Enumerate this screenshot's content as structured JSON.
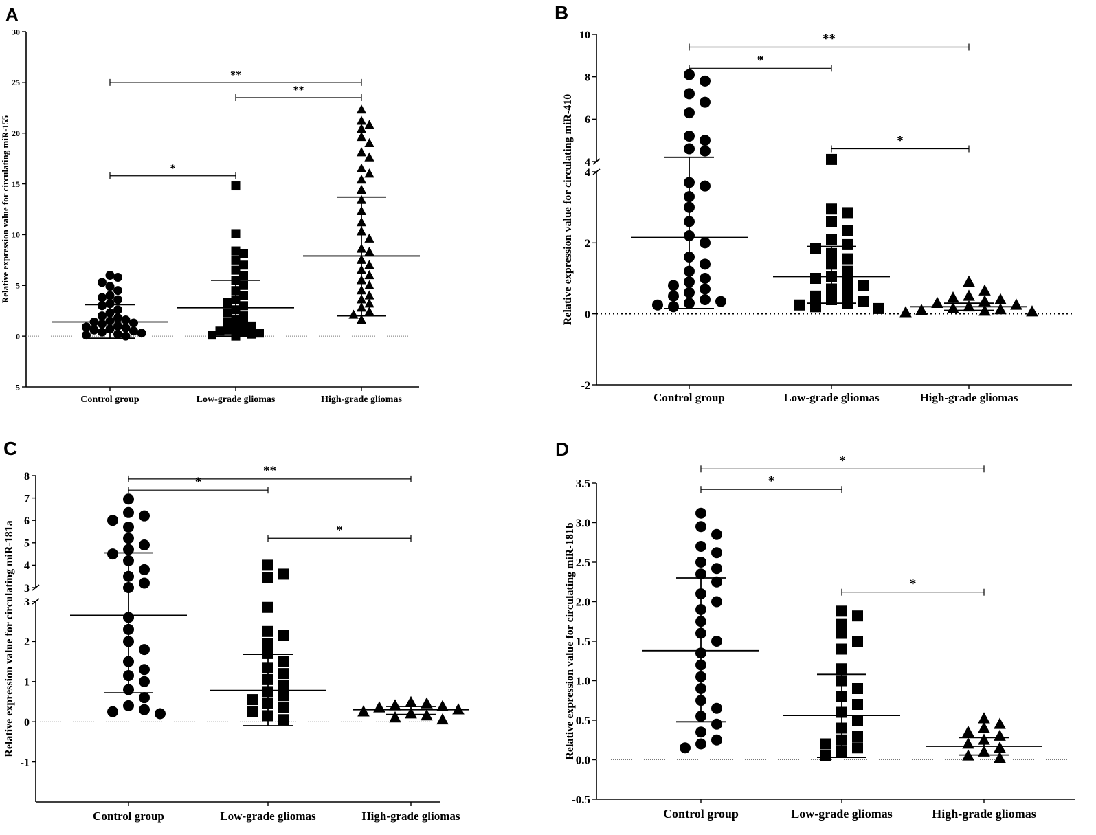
{
  "figure": {
    "description_free": true
  },
  "chart_data": [
    {
      "panel": "A",
      "type": "scatter",
      "subtype": "dot-plot-with-mean-sd",
      "title": "",
      "ylabel": "Relative expression value for circulating miR-155",
      "categories": [
        "Control group",
        "Low-grade gliomas",
        "High-grade gliomas"
      ],
      "ylim": [
        -5,
        30
      ],
      "yticks": [
        "-5",
        "0",
        "5",
        "10",
        "15",
        "20",
        "25",
        "30"
      ],
      "marker_shapes": [
        "circle",
        "square",
        "triangle"
      ],
      "groups": [
        {
          "name": "Control group",
          "marker": "circle",
          "mean": 1.4,
          "sd_upper": 3.1,
          "sd_lower": -0.2,
          "values": [
            6.0,
            5.8,
            5.3,
            4.9,
            4.5,
            4.0,
            3.8,
            3.6,
            3.2,
            3.0,
            2.6,
            2.3,
            2.0,
            1.8,
            1.6,
            1.5,
            1.4,
            1.3,
            1.2,
            1.0,
            0.9,
            0.8,
            0.7,
            0.6,
            0.5,
            0.4,
            0.3,
            0.2,
            0.1,
            0.0
          ]
        },
        {
          "name": "Low-grade gliomas",
          "marker": "square",
          "mean": 2.8,
          "sd_upper": 5.5,
          "sd_lower": 0.0,
          "values": [
            14.8,
            10.1,
            8.4,
            8.1,
            7.5,
            7.0,
            6.5,
            6.0,
            5.5,
            5.0,
            4.5,
            4.0,
            3.6,
            3.3,
            3.0,
            2.6,
            2.3,
            2.0,
            1.6,
            1.4,
            1.2,
            1.0,
            0.8,
            0.6,
            0.5,
            0.4,
            0.3,
            0.2,
            0.1,
            0.0
          ]
        },
        {
          "name": "High-grade gliomas",
          "marker": "triangle",
          "mean": 7.9,
          "sd_upper": 13.7,
          "sd_lower": 2.0,
          "values": [
            22.3,
            21.2,
            20.8,
            20.4,
            19.6,
            19.0,
            18.1,
            17.6,
            16.5,
            16.0,
            15.4,
            14.4,
            13.4,
            12.3,
            11.2,
            10.3,
            9.6,
            8.6,
            8.3,
            7.5,
            7.0,
            6.5,
            6.0,
            5.5,
            5.0,
            4.5,
            4.0,
            3.6,
            3.2,
            2.8,
            2.4,
            2.1,
            1.6
          ]
        }
      ],
      "significance": [
        {
          "from": "Control group",
          "to": "High-grade gliomas",
          "y": 25.0,
          "label": "**"
        },
        {
          "from": "Low-grade gliomas",
          "to": "High-grade gliomas",
          "y": 23.5,
          "label": "**"
        },
        {
          "from": "Control group",
          "to": "Low-grade gliomas",
          "y": 15.8,
          "label": "*"
        }
      ],
      "broken_axis": false
    },
    {
      "panel": "B",
      "type": "scatter",
      "subtype": "dot-plot-with-mean-sd",
      "title": "",
      "ylabel": "Relative expression value for circulating miR-410",
      "categories": [
        "Control group",
        "Low-grade gliomas",
        "High-grade gliomas"
      ],
      "ylim": [
        -2,
        10
      ],
      "yticks": [
        "-2",
        "0",
        "2",
        "4",
        "4",
        "6",
        "8",
        "10"
      ],
      "broken_axis": true,
      "break_at": 4,
      "marker_shapes": [
        "circle",
        "square",
        "triangle"
      ],
      "groups": [
        {
          "name": "Control group",
          "marker": "circle",
          "mean": 2.15,
          "sd_upper": 4.2,
          "sd_lower": 0.15,
          "values": [
            8.1,
            7.8,
            7.2,
            6.8,
            6.3,
            5.2,
            5.0,
            4.6,
            4.5,
            3.7,
            3.6,
            3.3,
            3.0,
            2.6,
            2.2,
            2.0,
            1.6,
            1.4,
            1.2,
            1.0,
            0.9,
            0.8,
            0.7,
            0.6,
            0.5,
            0.4,
            0.35,
            0.3,
            0.25,
            0.2
          ]
        },
        {
          "name": "Low-grade gliomas",
          "marker": "square",
          "mean": 1.05,
          "sd_upper": 1.9,
          "sd_lower": 0.3,
          "values": [
            4.1,
            2.95,
            2.85,
            2.6,
            2.35,
            2.1,
            1.95,
            1.85,
            1.7,
            1.55,
            1.4,
            1.2,
            1.05,
            1.0,
            0.9,
            0.8,
            0.7,
            0.6,
            0.5,
            0.4,
            0.35,
            0.3,
            0.25,
            0.2,
            0.15
          ]
        },
        {
          "name": "High-grade gliomas",
          "marker": "triangle",
          "mean": 0.2,
          "sd_upper": 0.3,
          "sd_lower": 0.1,
          "values": [
            0.9,
            0.65,
            0.5,
            0.45,
            0.4,
            0.35,
            0.3,
            0.25,
            0.2,
            0.15,
            0.12,
            0.1,
            0.08,
            0.06,
            0.04
          ]
        }
      ],
      "significance": [
        {
          "from": "Control group",
          "to": "High-grade gliomas",
          "y": 9.4,
          "label": "**"
        },
        {
          "from": "Control group",
          "to": "Low-grade gliomas",
          "y": 8.4,
          "label": "*"
        },
        {
          "from": "Low-grade gliomas",
          "to": "High-grade gliomas",
          "y": 4.6,
          "label": "*"
        }
      ]
    },
    {
      "panel": "C",
      "type": "scatter",
      "subtype": "dot-plot-with-mean-sd",
      "title": "",
      "ylabel": "Relative expression value for circulating miR-181a",
      "categories": [
        "Control group",
        "Low-grade gliomas",
        "High-grade gliomas"
      ],
      "ylim": [
        -2,
        8
      ],
      "yticks": [
        "-1",
        "0",
        "1",
        "2",
        "3",
        "3",
        "4",
        "5",
        "6",
        "7",
        "8"
      ],
      "broken_axis": true,
      "break_at": 3,
      "marker_shapes": [
        "circle",
        "square",
        "triangle"
      ],
      "groups": [
        {
          "name": "Control group",
          "marker": "circle",
          "mean": 2.65,
          "sd_upper": 4.55,
          "sd_lower": 0.72,
          "values": [
            6.95,
            6.35,
            6.2,
            6.0,
            5.7,
            5.2,
            4.9,
            4.7,
            4.5,
            4.2,
            3.8,
            3.5,
            3.2,
            3.0,
            2.6,
            2.3,
            2.0,
            1.8,
            1.5,
            1.3,
            1.15,
            1.0,
            0.8,
            0.6,
            0.4,
            0.3,
            0.25,
            0.2
          ]
        },
        {
          "name": "Low-grade gliomas",
          "marker": "square",
          "mean": 0.78,
          "sd_upper": 1.68,
          "sd_lower": -0.1,
          "values": [
            4.0,
            3.6,
            3.45,
            2.85,
            2.25,
            2.15,
            1.95,
            1.7,
            1.5,
            1.35,
            1.2,
            1.05,
            0.9,
            0.75,
            0.65,
            0.55,
            0.45,
            0.35,
            0.25,
            0.15,
            0.05
          ]
        },
        {
          "name": "High-grade gliomas",
          "marker": "triangle",
          "mean": 0.3,
          "sd_upper": 0.38,
          "sd_lower": 0.18,
          "values": [
            0.48,
            0.45,
            0.4,
            0.38,
            0.35,
            0.3,
            0.25,
            0.2,
            0.15,
            0.1,
            0.05
          ]
        }
      ],
      "significance": [
        {
          "from": "Control group",
          "to": "High-grade gliomas",
          "y": 7.85,
          "label": "**"
        },
        {
          "from": "Control group",
          "to": "Low-grade gliomas",
          "y": 7.35,
          "label": "*"
        },
        {
          "from": "Low-grade gliomas",
          "to": "High-grade gliomas",
          "y": 5.2,
          "label": "*"
        }
      ]
    },
    {
      "panel": "D",
      "type": "scatter",
      "subtype": "dot-plot-with-mean-sd",
      "title": "",
      "ylabel": "Relative expression value for circulating miR-181b",
      "categories": [
        "Control group",
        "Low-grade gliomas",
        "High-grade gliomas"
      ],
      "ylim": [
        -0.5,
        3.5
      ],
      "yticks": [
        "-0.5",
        "0.0",
        "0.5",
        "1.0",
        "1.5",
        "2.0",
        "2.5",
        "3.0",
        "3.5"
      ],
      "broken_axis": false,
      "marker_shapes": [
        "circle",
        "square",
        "triangle"
      ],
      "groups": [
        {
          "name": "Control group",
          "marker": "circle",
          "mean": 1.38,
          "sd_upper": 2.3,
          "sd_lower": 0.48,
          "values": [
            3.12,
            2.95,
            2.85,
            2.7,
            2.62,
            2.5,
            2.42,
            2.35,
            2.25,
            2.1,
            2.0,
            1.9,
            1.75,
            1.6,
            1.5,
            1.35,
            1.2,
            1.05,
            0.9,
            0.75,
            0.65,
            0.55,
            0.45,
            0.35,
            0.25,
            0.2,
            0.15
          ]
        },
        {
          "name": "Low-grade gliomas",
          "marker": "square",
          "mean": 0.56,
          "sd_upper": 1.08,
          "sd_lower": 0.03,
          "values": [
            1.88,
            1.82,
            1.72,
            1.6,
            1.5,
            1.4,
            1.15,
            1.0,
            0.9,
            0.8,
            0.7,
            0.6,
            0.5,
            0.4,
            0.3,
            0.25,
            0.2,
            0.15,
            0.1,
            0.05
          ]
        },
        {
          "name": "High-grade gliomas",
          "marker": "triangle",
          "mean": 0.17,
          "sd_upper": 0.28,
          "sd_lower": 0.06,
          "values": [
            0.52,
            0.45,
            0.4,
            0.35,
            0.3,
            0.25,
            0.2,
            0.15,
            0.1,
            0.05,
            0.02
          ]
        }
      ],
      "significance": [
        {
          "from": "Control group",
          "to": "High-grade gliomas",
          "y": 3.68,
          "label": "*"
        },
        {
          "from": "Control group",
          "to": "Low-grade gliomas",
          "y": 3.42,
          "label": "*"
        },
        {
          "from": "Low-grade gliomas",
          "to": "High-grade gliomas",
          "y": 2.12,
          "label": "*"
        }
      ]
    }
  ]
}
